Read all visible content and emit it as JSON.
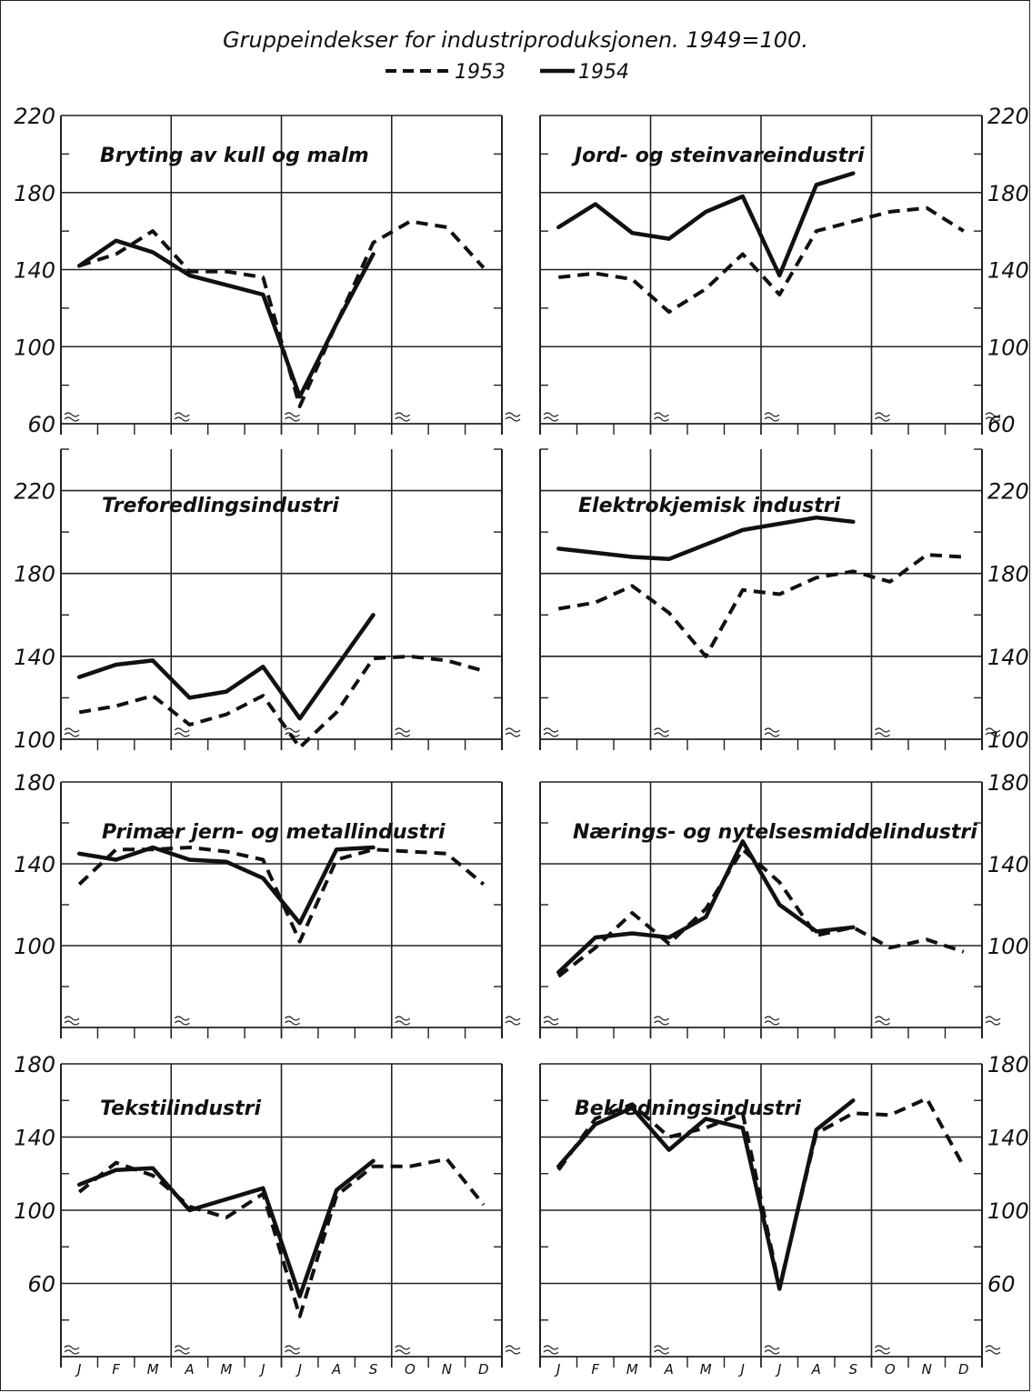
{
  "title": "Gruppeindekser for industriproduksjonen. 1949=100.",
  "legend": [
    {
      "label": "1953",
      "style": "dashed"
    },
    {
      "label": "1954",
      "style": "solid"
    }
  ],
  "months": [
    "J",
    "F",
    "M",
    "A",
    "M",
    "J",
    "J",
    "A",
    "S",
    "O",
    "N",
    "D"
  ],
  "colors": {
    "line": "#111111",
    "grid": "#222222"
  },
  "chart_data": [
    {
      "type": "line",
      "title": "Bryting av kull og malm",
      "ylim": [
        60,
        220
      ],
      "yticks": [
        "220",
        "180",
        "140",
        "100",
        "60"
      ],
      "axis_labels_side": "left",
      "categories": [
        "J",
        "F",
        "M",
        "A",
        "M",
        "J",
        "J",
        "A",
        "S",
        "O",
        "N",
        "D"
      ],
      "series": [
        {
          "name": "1953",
          "values": [
            142,
            148,
            160,
            139,
            139,
            136,
            69,
            112,
            154,
            165,
            162,
            141
          ]
        },
        {
          "name": "1954",
          "values": [
            142,
            155,
            149,
            137,
            132,
            127,
            74,
            112,
            148,
            null,
            null,
            null
          ]
        }
      ]
    },
    {
      "type": "line",
      "title": "Jord- og steinvareindustri",
      "ylim": [
        60,
        220
      ],
      "yticks": [
        "220",
        "180",
        "140",
        "100",
        "60"
      ],
      "axis_labels_side": "right",
      "categories": [
        "J",
        "F",
        "M",
        "A",
        "M",
        "J",
        "J",
        "A",
        "S",
        "O",
        "N",
        "D"
      ],
      "series": [
        {
          "name": "1953",
          "values": [
            136,
            138,
            135,
            118,
            130,
            148,
            127,
            160,
            165,
            170,
            172,
            160
          ]
        },
        {
          "name": "1954",
          "values": [
            162,
            174,
            159,
            156,
            170,
            178,
            137,
            184,
            190,
            null,
            null,
            null
          ]
        }
      ]
    },
    {
      "type": "line",
      "title": "Treforedlingsindustri",
      "ylim": [
        100,
        240
      ],
      "yticks": [
        "220",
        "180",
        "140",
        "100"
      ],
      "axis_labels_side": "left",
      "categories": [
        "J",
        "F",
        "M",
        "A",
        "M",
        "J",
        "J",
        "A",
        "S",
        "O",
        "N",
        "D"
      ],
      "series": [
        {
          "name": "1953",
          "values": [
            113,
            116,
            121,
            107,
            112,
            121,
            96,
            113,
            139,
            140,
            138,
            133
          ]
        },
        {
          "name": "1954",
          "values": [
            130,
            136,
            138,
            120,
            123,
            135,
            110,
            135,
            160,
            null,
            null,
            null
          ]
        }
      ]
    },
    {
      "type": "line",
      "title": "Elektrokjemisk industri",
      "ylim": [
        100,
        240
      ],
      "yticks": [
        "220",
        "180",
        "140",
        "100"
      ],
      "axis_labels_side": "right",
      "categories": [
        "J",
        "F",
        "M",
        "A",
        "M",
        "J",
        "J",
        "A",
        "S",
        "O",
        "N",
        "D"
      ],
      "series": [
        {
          "name": "1953",
          "values": [
            163,
            166,
            174,
            161,
            140,
            172,
            170,
            178,
            181,
            176,
            189,
            188
          ]
        },
        {
          "name": "1954",
          "values": [
            192,
            190,
            188,
            187,
            194,
            201,
            204,
            207,
            205,
            null,
            null,
            null
          ]
        }
      ]
    },
    {
      "type": "line",
      "title": "Primær jern- og metallindustri",
      "ylim": [
        60,
        180
      ],
      "yticks": [
        "180",
        "140",
        "100"
      ],
      "axis_labels_side": "left",
      "categories": [
        "J",
        "F",
        "M",
        "A",
        "M",
        "J",
        "J",
        "A",
        "S",
        "O",
        "N",
        "D"
      ],
      "series": [
        {
          "name": "1953",
          "values": [
            130,
            147,
            147,
            148,
            146,
            142,
            102,
            142,
            147,
            146,
            145,
            130
          ]
        },
        {
          "name": "1954",
          "values": [
            145,
            142,
            148,
            142,
            141,
            133,
            111,
            147,
            148,
            null,
            null,
            null
          ]
        }
      ]
    },
    {
      "type": "line",
      "title": "Nærings- og nytelsesmiddelindustri",
      "ylim": [
        60,
        180
      ],
      "yticks": [
        "180",
        "140",
        "100"
      ],
      "axis_labels_side": "right",
      "categories": [
        "J",
        "F",
        "M",
        "A",
        "M",
        "J",
        "J",
        "A",
        "S",
        "O",
        "N",
        "D"
      ],
      "series": [
        {
          "name": "1953",
          "values": [
            85,
            99,
            116,
            101,
            118,
            147,
            131,
            105,
            109,
            99,
            103,
            97
          ]
        },
        {
          "name": "1954",
          "values": [
            87,
            104,
            106,
            104,
            114,
            151,
            120,
            107,
            109,
            null,
            null,
            null
          ]
        }
      ]
    },
    {
      "type": "line",
      "title": "Tekstilindustri",
      "ylim": [
        20,
        180
      ],
      "yticks": [
        "180",
        "140",
        "100",
        "60"
      ],
      "axis_labels_side": "left",
      "categories": [
        "J",
        "F",
        "M",
        "A",
        "M",
        "J",
        "J",
        "A",
        "S",
        "O",
        "N",
        "D"
      ],
      "series": [
        {
          "name": "1953",
          "values": [
            110,
            126,
            119,
            102,
            96,
            109,
            42,
            108,
            124,
            124,
            128,
            103
          ]
        },
        {
          "name": "1954",
          "values": [
            114,
            122,
            123,
            100,
            106,
            112,
            53,
            111,
            127,
            null,
            null,
            null
          ]
        }
      ]
    },
    {
      "type": "line",
      "title": "Bekledningsindustri",
      "ylim": [
        20,
        180
      ],
      "yticks": [
        "180",
        "140",
        "100",
        "60"
      ],
      "axis_labels_side": "right",
      "categories": [
        "J",
        "F",
        "M",
        "A",
        "M",
        "J",
        "J",
        "A",
        "S",
        "O",
        "N",
        "D"
      ],
      "series": [
        {
          "name": "1953",
          "values": [
            122,
            150,
            158,
            140,
            145,
            153,
            58,
            142,
            153,
            152,
            161,
            124
          ]
        },
        {
          "name": "1954",
          "values": [
            124,
            147,
            156,
            133,
            150,
            145,
            57,
            144,
            160,
            null,
            null,
            null
          ]
        }
      ]
    }
  ]
}
